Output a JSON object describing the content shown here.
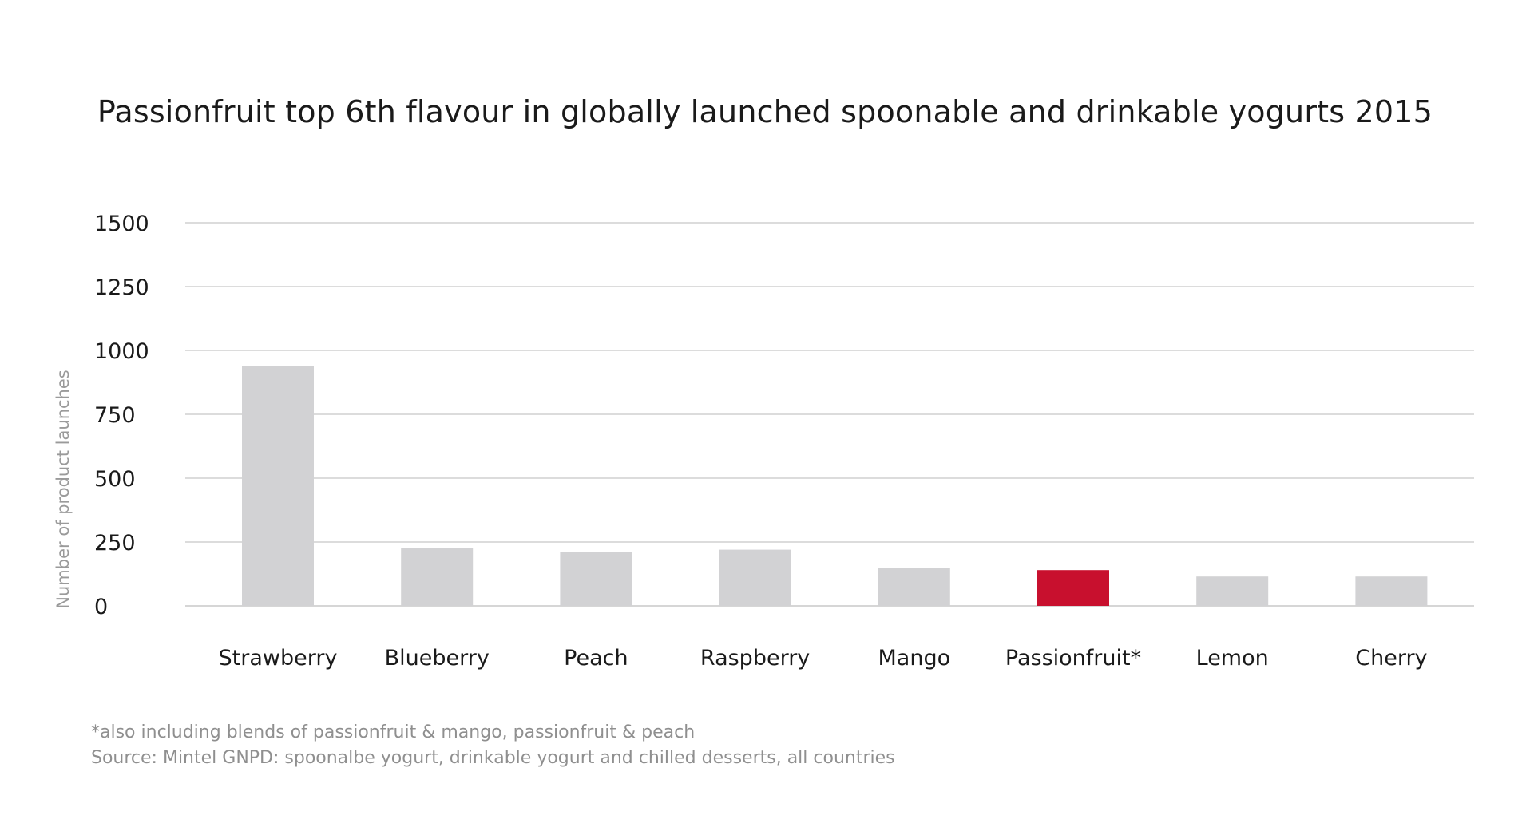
{
  "colors": {
    "bar": "#d2d2d4",
    "highlight": "#c8102e",
    "grid": "#d0d0d0",
    "text": "#1a1a1a",
    "muted": "#9a9a9a"
  },
  "footnotes": {
    "note": "*also including blends of passionfruit & mango, passionfruit & peach",
    "source": "Source: Mintel GNPD: spoonalbe yogurt, drinkable yogurt and chilled desserts, all countries"
  },
  "chart_data": {
    "type": "bar",
    "title": "Passionfruit top 6th flavour in globally launched spoonable and drinkable yogurts 2015",
    "xlabel": "",
    "ylabel": "Number of product launches",
    "ylim": [
      0,
      1500
    ],
    "yticks": [
      0,
      250,
      500,
      750,
      1000,
      1250,
      1500
    ],
    "grid": true,
    "categories": [
      "Strawberry",
      "Blueberry",
      "Peach",
      "Raspberry",
      "Mango",
      "Passionfruit*",
      "Lemon",
      "Cherry"
    ],
    "values": [
      940,
      225,
      210,
      220,
      150,
      140,
      115,
      115
    ],
    "highlight_category": "Passionfruit*"
  }
}
